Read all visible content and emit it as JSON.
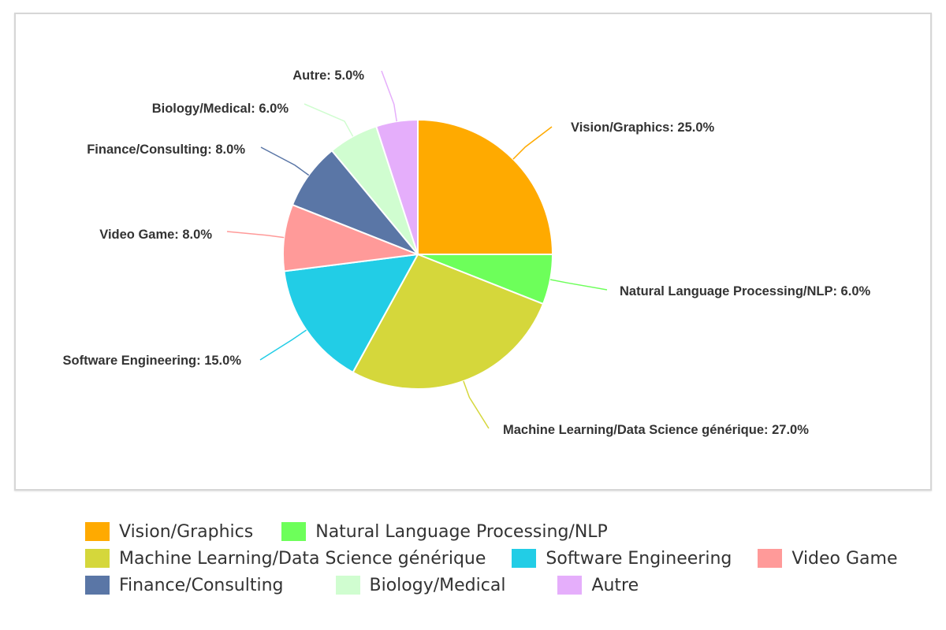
{
  "chart_data": {
    "type": "pie",
    "title": "",
    "unit": "%",
    "slices": [
      {
        "name": "Vision/Graphics",
        "value": 25.0,
        "color": "#ffaa00",
        "label": "Vision/Graphics: 25.0%"
      },
      {
        "name": "Natural Language Processing/NLP",
        "value": 6.0,
        "color": "#6dff5a",
        "label": "Natural Language Processing/NLP: 6.0%"
      },
      {
        "name": "Machine Learning/Data Science générique",
        "value": 27.0,
        "color": "#d5d73b",
        "label": "Machine Learning/Data Science générique: 27.0%"
      },
      {
        "name": "Software Engineering",
        "value": 15.0,
        "color": "#22cde6",
        "label": "Software Engineering: 15.0%"
      },
      {
        "name": "Video Game",
        "value": 8.0,
        "color": "#ff9a99",
        "label": "Video Game: 8.0%"
      },
      {
        "name": "Finance/Consulting",
        "value": 8.0,
        "color": "#5a76a6",
        "label": "Finance/Consulting: 8.0%"
      },
      {
        "name": "Biology/Medical",
        "value": 6.0,
        "color": "#d0fdd0",
        "label": "Biology/Medical: 6.0%"
      },
      {
        "name": "Autre",
        "value": 5.0,
        "color": "#e5aefb",
        "label": "Autre: 5.0%"
      }
    ],
    "legend": {
      "position": "bottom"
    }
  },
  "legend": {
    "rows": [
      [
        0,
        1
      ],
      [
        2,
        3,
        4
      ],
      [
        5,
        6,
        7
      ]
    ]
  }
}
